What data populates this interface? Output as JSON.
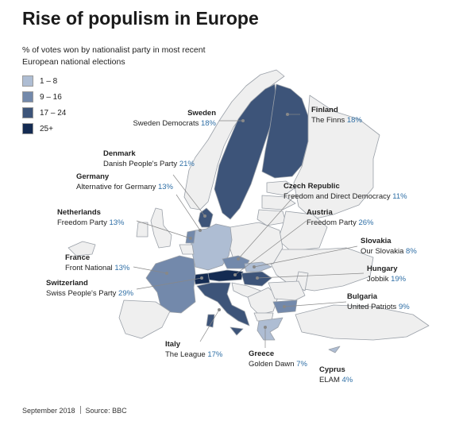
{
  "title": "Rise of populism in Europe",
  "subtitle": "% of votes won by nationalist party in most recent European national elections",
  "legend": [
    {
      "label": "1 –   8",
      "color": "#aebdd3"
    },
    {
      "label": "9 –  16",
      "color": "#7389ab"
    },
    {
      "label": "17 –  24",
      "color": "#3d5479"
    },
    {
      "label": "25+",
      "color": "#142b52"
    }
  ],
  "colors": {
    "none": "#efefef",
    "border": "#9aa0a8",
    "pct": "#2f6fa6",
    "leader": "#888888"
  },
  "countries": {
    "sweden": {
      "name": "Sweden",
      "party": "Sweden Democrats",
      "pct": "18%"
    },
    "finland": {
      "name": "Finland",
      "party": "The Finns",
      "pct": "18%"
    },
    "denmark": {
      "name": "Denmark",
      "party": "Danish People's Party",
      "pct": "21%"
    },
    "germany": {
      "name": "Germany",
      "party": "Alternative for Germany",
      "pct": "13%"
    },
    "czech": {
      "name": "Czech Republic",
      "party": "Freedom and Direct Democracy",
      "pct": "11%"
    },
    "netherlands": {
      "name": "Netherlands",
      "party": "Freedom Party",
      "pct": "13%"
    },
    "austria": {
      "name": "Austria",
      "party": "Freedom Party",
      "pct": "26%"
    },
    "slovakia": {
      "name": "Slovakia",
      "party": "Our Slovakia",
      "pct": "8%"
    },
    "france": {
      "name": "France",
      "party": "Front National",
      "pct": "13%"
    },
    "hungary": {
      "name": "Hungary",
      "party": "Jobbik",
      "pct": "19%"
    },
    "switzerland": {
      "name": "Switzerland",
      "party": "Swiss People's Party",
      "pct": "29%"
    },
    "bulgaria": {
      "name": "Bulgaria",
      "party": "United Patriots",
      "pct": "9%"
    },
    "italy": {
      "name": "Italy",
      "party": "The League",
      "pct": "17%"
    },
    "greece": {
      "name": "Greece",
      "party": "Golden Dawn",
      "pct": "7%"
    },
    "cyprus": {
      "name": "Cyprus",
      "party": "ELAM",
      "pct": "4%"
    }
  },
  "footer": {
    "date": "September 2018",
    "source": "Source: BBC"
  }
}
